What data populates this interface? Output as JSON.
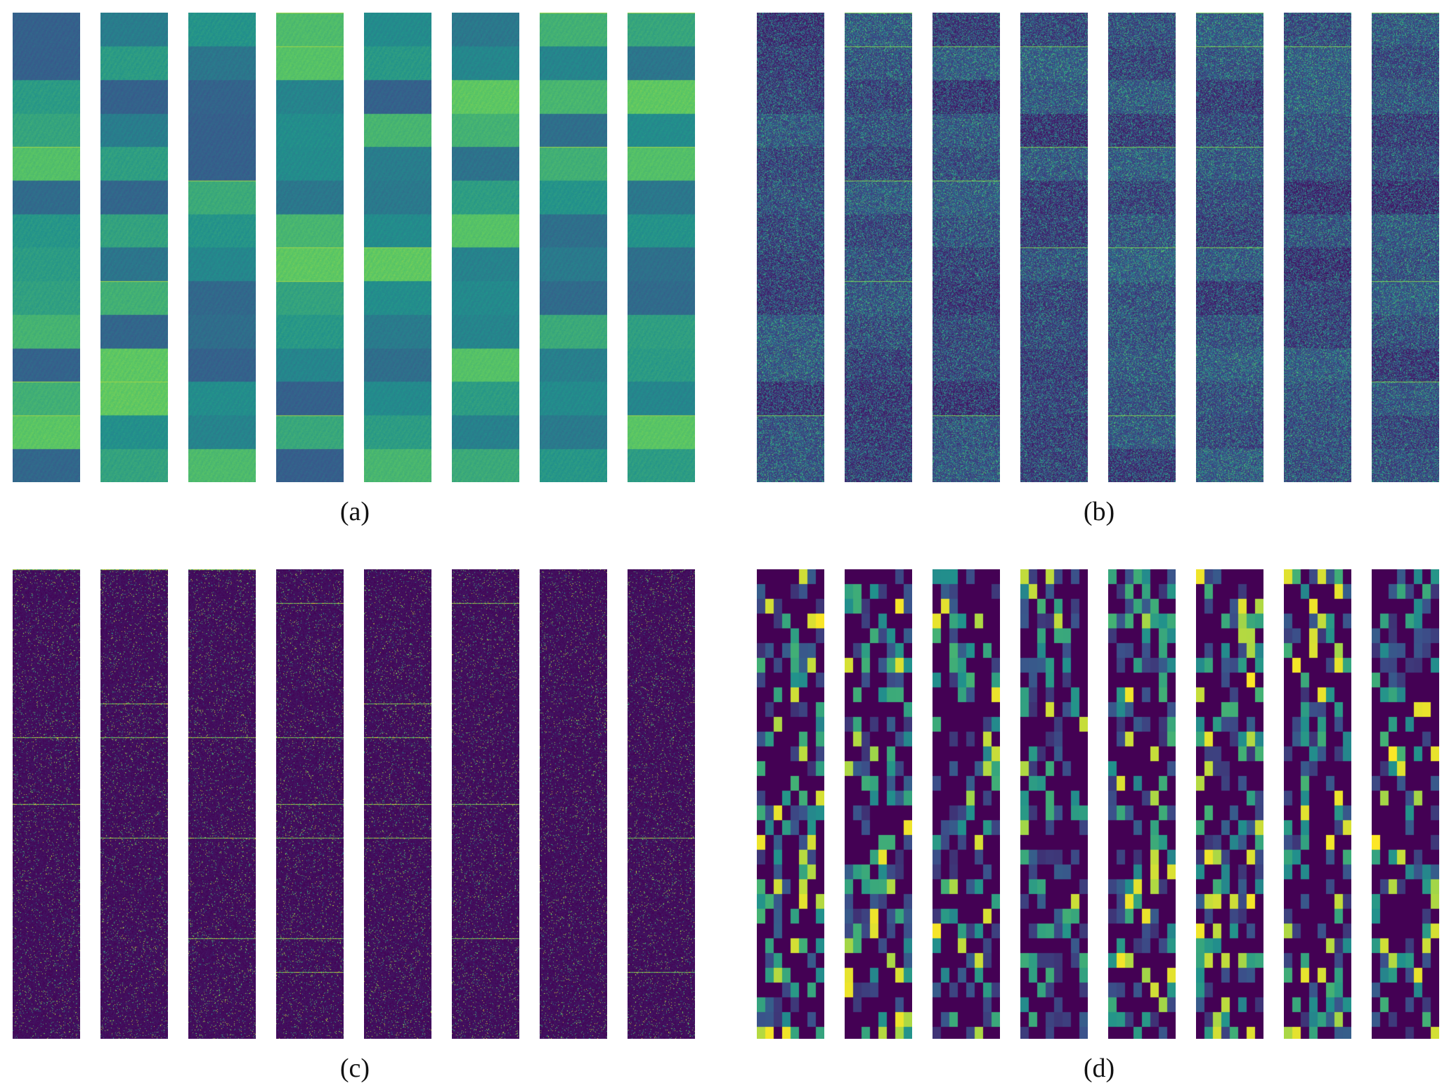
{
  "figure": {
    "colormap": [
      "#440154",
      "#3b528b",
      "#21918c",
      "#5ec962",
      "#fde725"
    ],
    "panels": [
      {
        "id": "a",
        "caption": "(a)",
        "strip_count": 8,
        "style": "smooth-bands"
      },
      {
        "id": "b",
        "caption": "(b)",
        "strip_count": 8,
        "style": "dark-noisy-bands"
      },
      {
        "id": "c",
        "caption": "(c)",
        "strip_count": 8,
        "style": "sparse-bright-lines"
      },
      {
        "id": "d",
        "caption": "(d)",
        "strip_count": 8,
        "style": "coarse-blocks"
      }
    ]
  }
}
